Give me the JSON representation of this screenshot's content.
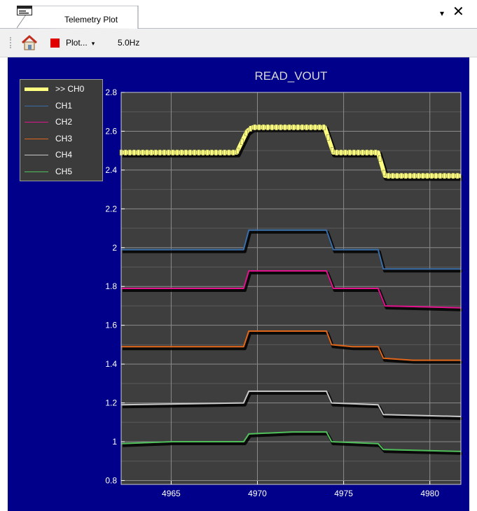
{
  "tab": {
    "title": "Telemetry Plot",
    "menu_glyph": "▾",
    "close_glyph": "✕"
  },
  "toolbar": {
    "home_icon": "home-icon",
    "stop_icon": "stop-icon",
    "plot_label": "Plot...",
    "plot_arrow": "▾",
    "rate_label": "5.0Hz"
  },
  "chart_data": {
    "type": "line",
    "title": "READ_VOUT",
    "xlabel": "",
    "ylabel": "",
    "xlim": [
      4962.1,
      4981.8
    ],
    "ylim": [
      0.78,
      2.8
    ],
    "xticks": [
      4965,
      4970,
      4975,
      4980
    ],
    "yticks": [
      0.8,
      1,
      1.2,
      1.4,
      1.6,
      1.8,
      2,
      2.2,
      2.4,
      2.6,
      2.8
    ],
    "ytick_labels": [
      "0.8",
      "1",
      "1.2",
      "1.4",
      "1.6",
      "1.8",
      "2",
      "2.2",
      "2.4",
      "2.6",
      "2.8"
    ],
    "xtick_labels": [
      "4965",
      "4970",
      "4975",
      "4980"
    ],
    "grid": true,
    "legend_position": "top-left",
    "background_color": "#3e3e3e",
    "series": [
      {
        "name": ">> CH0",
        "color": "#ffff80",
        "width": 6,
        "markers": true,
        "x": [
          4962.1,
          4968.8,
          4969.4,
          4969.7,
          4973.9,
          4974.4,
          4977.0,
          4977.4,
          4981.8
        ],
        "y": [
          2.49,
          2.49,
          2.6,
          2.62,
          2.62,
          2.49,
          2.49,
          2.37,
          2.37
        ]
      },
      {
        "name": "CH1",
        "color": "#3a6ea8",
        "width": 2,
        "x": [
          4962.1,
          4969.2,
          4969.5,
          4974.0,
          4974.4,
          4977.0,
          4977.3,
          4981.8
        ],
        "y": [
          1.99,
          1.99,
          2.09,
          2.09,
          1.99,
          1.99,
          1.89,
          1.89
        ]
      },
      {
        "name": "CH2",
        "color": "#e0128c",
        "width": 2,
        "x": [
          4962.1,
          4969.2,
          4969.5,
          4974.0,
          4974.4,
          4977.0,
          4977.4,
          4981.8
        ],
        "y": [
          1.79,
          1.79,
          1.88,
          1.88,
          1.79,
          1.79,
          1.7,
          1.69
        ]
      },
      {
        "name": "CH3",
        "color": "#e0661a",
        "width": 2,
        "x": [
          4962.1,
          4969.2,
          4969.5,
          4974.0,
          4974.3,
          4975.5,
          4977.0,
          4977.3,
          4979.0,
          4981.8
        ],
        "y": [
          1.49,
          1.49,
          1.57,
          1.57,
          1.5,
          1.49,
          1.49,
          1.43,
          1.42,
          1.42
        ]
      },
      {
        "name": "CH4",
        "color": "#c8c8c8",
        "width": 2,
        "x": [
          4962.1,
          4969.2,
          4969.5,
          4974.0,
          4974.3,
          4977.0,
          4977.3,
          4981.8
        ],
        "y": [
          1.19,
          1.2,
          1.26,
          1.26,
          1.2,
          1.19,
          1.14,
          1.13
        ]
      },
      {
        "name": "CH5",
        "color": "#4fbf5a",
        "width": 2,
        "x": [
          4962.1,
          4965.0,
          4969.2,
          4969.5,
          4972.0,
          4974.0,
          4974.3,
          4977.0,
          4977.3,
          4981.8
        ],
        "y": [
          0.99,
          1.0,
          1.0,
          1.04,
          1.05,
          1.05,
          1.0,
          0.99,
          0.96,
          0.95
        ]
      }
    ]
  }
}
